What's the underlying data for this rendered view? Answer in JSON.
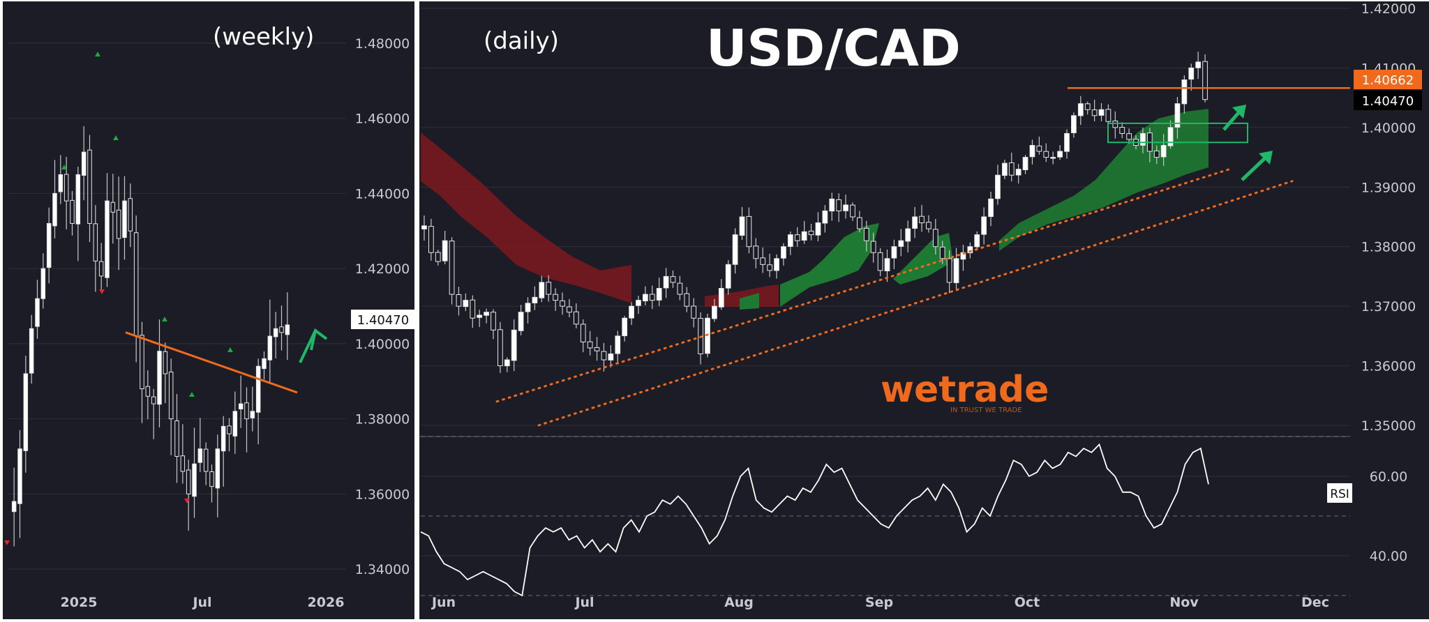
{
  "title": "USD/CAD",
  "colors": {
    "background": "#1c1c26",
    "candle_up": "#ffffff",
    "candle_down": "#1c1c26",
    "trendline": "#f06a1e",
    "arrow": "#1fb86a",
    "cloud_bull": "#1e7a32",
    "cloud_bear": "#7d1820",
    "price_tag": "#f06a1e",
    "signal_up": "#1fa83c",
    "signal_down": "#e0282a"
  },
  "weekly": {
    "label": "(weekly)",
    "price_label": "1.40470",
    "y_ticks": [
      "1.48000",
      "1.46000",
      "1.44000",
      "1.42000",
      "1.40000",
      "1.38000",
      "1.36000",
      "1.34000"
    ],
    "x_ticks": [
      "2025",
      "Jul",
      "2026"
    ]
  },
  "daily": {
    "label": "(daily)",
    "price_tag_orange": "1.40662",
    "price_tag_black": "1.40470",
    "y_ticks": [
      "1.42000",
      "1.41000",
      "1.40000",
      "1.39000",
      "1.38000",
      "1.37000",
      "1.36000",
      "1.35000"
    ],
    "x_ticks": [
      "Jun",
      "Jul",
      "Aug",
      "Sep",
      "Oct",
      "Nov",
      "Dec"
    ]
  },
  "rsi": {
    "label": "RSI",
    "y_ticks": [
      "60.00",
      "40.00"
    ]
  },
  "logo": {
    "name": "wetrade",
    "tagline": "IN TRUST WE TRADE"
  },
  "chart_data": [
    {
      "type": "candlestick",
      "title": "(weekly)",
      "ylim": [
        1.33,
        1.49
      ],
      "x_ticks": [
        "2025",
        "Jul",
        "2026"
      ],
      "y_ticks": [
        1.34,
        1.36,
        1.38,
        1.4,
        1.42,
        1.44,
        1.46,
        1.48
      ],
      "last_price": 1.4047,
      "trendline": {
        "from": {
          "x": "May 2025",
          "y": 1.403
        },
        "to": {
          "x": "Nov 2025",
          "y": 1.387
        }
      },
      "close_series_approx": [
        1.358,
        1.372,
        1.392,
        1.404,
        1.412,
        1.42,
        1.432,
        1.44,
        1.445,
        1.438,
        1.432,
        1.445,
        1.451,
        1.432,
        1.422,
        1.418,
        1.438,
        1.435,
        1.428,
        1.438,
        1.43,
        1.402,
        1.388,
        1.386,
        1.384,
        1.398,
        1.392,
        1.38,
        1.37,
        1.366,
        1.36,
        1.368,
        1.372,
        1.366,
        1.362,
        1.372,
        1.378,
        1.376,
        1.382,
        1.384,
        1.38,
        1.382,
        1.394,
        1.396,
        1.402,
        1.404,
        1.403,
        1.405
      ]
    },
    {
      "type": "candlestick",
      "title": "(daily)",
      "ylim": [
        1.35,
        1.42
      ],
      "x_ticks": [
        "Jun",
        "Jul",
        "Aug",
        "Sep",
        "Oct",
        "Nov",
        "Dec"
      ],
      "y_ticks": [
        1.35,
        1.36,
        1.37,
        1.38,
        1.39,
        1.4,
        1.41,
        1.42
      ],
      "last_price": 1.4047,
      "horizontal_level": 1.40662,
      "support_lines": [
        {
          "from": {
            "x": "2025-06-10",
            "y": 1.354
          },
          "to": {
            "x": "2025-11-07",
            "y": 1.393
          }
        },
        {
          "from": {
            "x": "2025-06-25",
            "y": 1.35
          },
          "to": {
            "x": "2025-11-25",
            "y": 1.391
          }
        }
      ],
      "close_series_approx": [
        1.3835,
        1.379,
        1.3775,
        1.381,
        1.372,
        1.37,
        1.371,
        1.368,
        1.3685,
        1.369,
        1.366,
        1.36,
        1.361,
        1.366,
        1.369,
        1.3705,
        1.3715,
        1.374,
        1.372,
        1.371,
        1.37,
        1.369,
        1.367,
        1.364,
        1.363,
        1.3625,
        1.361,
        1.362,
        1.365,
        1.368,
        1.37,
        1.371,
        1.372,
        1.371,
        1.373,
        1.375,
        1.374,
        1.372,
        1.37,
        1.368,
        1.362,
        1.368,
        1.37,
        1.373,
        1.377,
        1.382,
        1.385,
        1.38,
        1.378,
        1.377,
        1.376,
        1.378,
        1.38,
        1.382,
        1.381,
        1.3825,
        1.382,
        1.384,
        1.386,
        1.388,
        1.386,
        1.387,
        1.385,
        1.383,
        1.381,
        1.379,
        1.376,
        1.378,
        1.38,
        1.381,
        1.383,
        1.385,
        1.384,
        1.383,
        1.38,
        1.378,
        1.374,
        1.378,
        1.379,
        1.38,
        1.382,
        1.385,
        1.388,
        1.392,
        1.394,
        1.392,
        1.393,
        1.395,
        1.397,
        1.396,
        1.395,
        1.395,
        1.396,
        1.399,
        1.402,
        1.404,
        1.403,
        1.402,
        1.403,
        1.401,
        1.4,
        1.399,
        1.398,
        1.397,
        1.399,
        1.396,
        1.395,
        1.397,
        1.4,
        1.404,
        1.408,
        1.41,
        1.411,
        1.4047
      ]
    },
    {
      "type": "line",
      "title": "RSI",
      "ylim": [
        30,
        70
      ],
      "y_ticks": [
        40,
        60
      ],
      "reference_lines": [
        30,
        50,
        70
      ],
      "values": [
        46,
        45,
        41,
        38,
        37,
        36,
        34,
        35,
        36,
        35,
        34,
        33,
        31,
        30,
        42,
        45,
        47,
        46,
        47,
        44,
        45,
        42,
        44,
        41,
        43,
        41,
        47,
        49,
        46,
        50,
        51,
        54,
        53,
        55,
        53,
        50,
        47,
        43,
        45,
        49,
        55,
        60,
        62,
        54,
        52,
        51,
        53,
        55,
        54,
        57,
        56,
        59,
        63,
        61,
        62,
        58,
        54,
        52,
        50,
        48,
        47,
        50,
        52,
        54,
        55,
        57,
        54,
        58,
        56,
        52,
        46,
        48,
        52,
        50,
        55,
        59,
        64,
        63,
        60,
        61,
        64,
        62,
        63,
        66,
        65,
        67,
        66,
        68,
        62,
        60,
        56,
        56,
        55,
        50,
        47,
        48,
        52,
        56,
        63,
        66,
        67,
        58
      ]
    }
  ]
}
